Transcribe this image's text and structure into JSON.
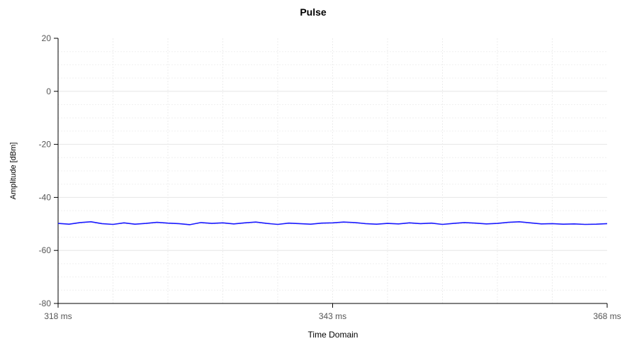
{
  "chart_data": {
    "type": "line",
    "title": "Pulse",
    "xlabel": "Time Domain",
    "ylabel": "Amplitude [dBm]",
    "xlim": [
      318,
      368
    ],
    "ylim": [
      -80,
      20
    ],
    "x_ticks": [
      {
        "value": 318,
        "label": "318 ms"
      },
      {
        "value": 343,
        "label": "343 ms"
      },
      {
        "value": 368,
        "label": "368 ms"
      }
    ],
    "y_ticks": [
      {
        "value": 20,
        "label": "20"
      },
      {
        "value": 0,
        "label": "0"
      },
      {
        "value": -20,
        "label": "-20"
      },
      {
        "value": -40,
        "label": "-40"
      },
      {
        "value": -60,
        "label": "-60"
      },
      {
        "value": -80,
        "label": "-80"
      }
    ],
    "grid": true,
    "series": [
      {
        "color": "#1a1aff",
        "x": [
          318,
          319,
          320,
          321,
          322,
          323,
          324,
          325,
          326,
          327,
          328,
          329,
          330,
          331,
          332,
          333,
          334,
          335,
          336,
          337,
          338,
          339,
          340,
          341,
          342,
          343,
          344,
          345,
          346,
          347,
          348,
          349,
          350,
          351,
          352,
          353,
          354,
          355,
          356,
          357,
          358,
          359,
          360,
          361,
          362,
          363,
          364,
          365,
          366,
          367,
          368
        ],
        "y": [
          -49.8,
          -50.1,
          -49.5,
          -49.2,
          -49.9,
          -50.2,
          -49.6,
          -50.1,
          -49.8,
          -49.4,
          -49.7,
          -49.9,
          -50.3,
          -49.5,
          -49.8,
          -49.6,
          -50.0,
          -49.6,
          -49.3,
          -49.8,
          -50.2,
          -49.7,
          -49.9,
          -50.1,
          -49.7,
          -49.6,
          -49.3,
          -49.5,
          -49.9,
          -50.1,
          -49.8,
          -50.0,
          -49.6,
          -49.9,
          -49.7,
          -50.2,
          -49.8,
          -49.5,
          -49.7,
          -50.0,
          -49.8,
          -49.4,
          -49.2,
          -49.6,
          -50.0,
          -49.9,
          -50.1,
          -50.0,
          -50.2,
          -50.1,
          -49.9
        ]
      }
    ]
  }
}
